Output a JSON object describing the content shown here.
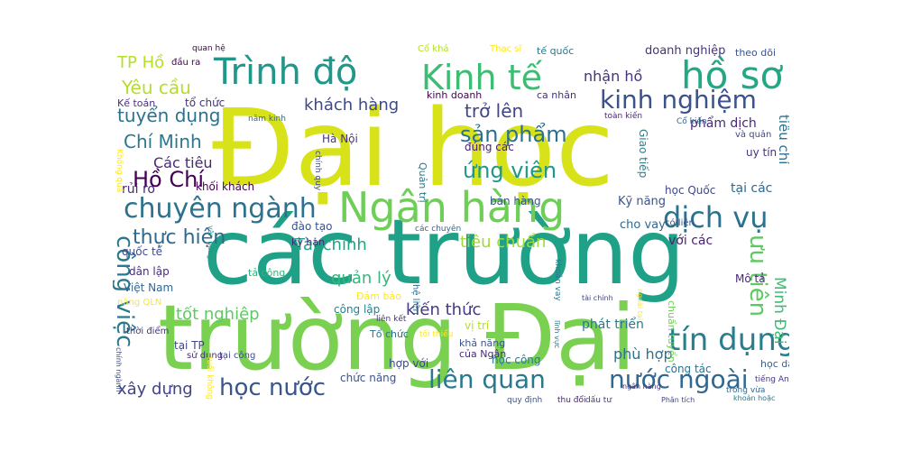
{
  "words": [
    {
      "text": "Đại học",
      "color": "#d8e219"
    },
    {
      "text": "các trường",
      "color": "#1fa187"
    },
    {
      "text": "trường Đại",
      "color": "#7ad151"
    },
    {
      "text": "Ngân hàng",
      "color": "#6ece58"
    },
    {
      "text": "Kinh tế",
      "color": "#3dbc74"
    },
    {
      "text": "Trình độ",
      "color": "#1f988b"
    },
    {
      "text": "hồ sơ",
      "color": "#22a884"
    },
    {
      "text": "chuyên ngành",
      "color": "#2c728e"
    },
    {
      "text": "dịch vụ",
      "color": "#2c728e"
    },
    {
      "text": "tín dụng",
      "color": "#277f8e"
    },
    {
      "text": "kinh nghiệm",
      "color": "#3b528b"
    },
    {
      "text": "liên quan",
      "color": "#2a788e"
    },
    {
      "text": "nước ngoài",
      "color": "#31688e"
    },
    {
      "text": "học nước",
      "color": "#39568c"
    },
    {
      "text": "công việc",
      "color": "#2a788e"
    },
    {
      "text": "ưu tiên",
      "color": "#5ec962"
    },
    {
      "text": "Hồ Chí",
      "color": "#440154"
    },
    {
      "text": "ứng viên",
      "color": "#1f988b"
    },
    {
      "text": "sản phẩm",
      "color": "#2d708e"
    },
    {
      "text": "thực hiện",
      "color": "#31688e"
    },
    {
      "text": "khách hàng",
      "color": "#3e4989"
    },
    {
      "text": "trở lên",
      "color": "#414487"
    },
    {
      "text": "Yêu cầu",
      "color": "#b5de2b"
    },
    {
      "text": "tuyển dụng",
      "color": "#2c728e"
    },
    {
      "text": "Chí Minh",
      "color": "#2a788e"
    },
    {
      "text": "tiêu chuẩn",
      "color": "#a0da39"
    },
    {
      "text": "Tài chính",
      "color": "#20a386"
    },
    {
      "text": "quản lý",
      "color": "#35b779"
    },
    {
      "text": "kiến thức",
      "color": "#443a83"
    },
    {
      "text": "tốt nghiệp",
      "color": "#5ec962"
    },
    {
      "text": "xây dựng",
      "color": "#414487"
    },
    {
      "text": "phù hợp",
      "color": "#2c728e"
    },
    {
      "text": "phát triển",
      "color": "#2a788e"
    },
    {
      "text": "TP Hồ",
      "color": "#b5de2b"
    },
    {
      "text": "Các tiêu",
      "color": "#482878"
    },
    {
      "text": "nhận hồ",
      "color": "#46327e"
    },
    {
      "text": "doanh nghiệp",
      "color": "#46327e"
    },
    {
      "text": "Minh Đại",
      "color": "#3dbc74"
    },
    {
      "text": "tiêu chí",
      "color": "#2c728e"
    },
    {
      "text": "phẩm dịch",
      "color": "#482878"
    },
    {
      "text": "Kỹ năng",
      "color": "#3b528b"
    },
    {
      "text": "cho vay",
      "color": "#31688e"
    },
    {
      "text": "Giao tiếp",
      "color": "#26828e"
    },
    {
      "text": "học Quốc",
      "color": "#3e4989"
    },
    {
      "text": "tại các",
      "color": "#31688e"
    },
    {
      "text": "uy tín",
      "color": "#46327e"
    },
    {
      "text": "với các",
      "color": "#481f70"
    },
    {
      "text": "bán hàng",
      "color": "#3b528b"
    },
    {
      "text": "chức năng",
      "color": "#3b528b"
    },
    {
      "text": "học công",
      "color": "#2a788e"
    },
    {
      "text": "công tác",
      "color": "#2c728e"
    },
    {
      "text": "Mô tả",
      "color": "#482878"
    },
    {
      "text": "Hà Nội",
      "color": "#46327e"
    },
    {
      "text": "khối khách",
      "color": "#440154"
    },
    {
      "text": "rủi ro",
      "color": "#482878"
    },
    {
      "text": "đào tạo",
      "color": "#3b528b"
    },
    {
      "text": "kỳ hạn",
      "color": "#482878"
    },
    {
      "text": "quốc tế",
      "color": "#3e4989"
    },
    {
      "text": "dân lập",
      "color": "#472d7b"
    },
    {
      "text": "Việt Nam",
      "color": "#31688e"
    },
    {
      "text": "công lập",
      "color": "#26828e"
    },
    {
      "text": "Tổ chức",
      "color": "#2c728e"
    },
    {
      "text": "Kế toán",
      "color": "#46327e"
    },
    {
      "text": "tổ chức",
      "color": "#46327e"
    },
    {
      "text": "Đảm bảo",
      "color": "#fde725"
    },
    {
      "text": "học dân",
      "color": "#355f8d"
    },
    {
      "text": "tại TP",
      "color": "#414487"
    },
    {
      "text": "khả năng",
      "color": "#3b528b"
    },
    {
      "text": "của Ngân",
      "color": "#472c7a"
    },
    {
      "text": "hợp với",
      "color": "#3e4989"
    },
    {
      "text": "vị trí",
      "color": "#b5de2b"
    },
    {
      "text": "Quản trị",
      "color": "#2a788e"
    },
    {
      "text": "tế quốc",
      "color": "#2a788e"
    },
    {
      "text": "theo dõi",
      "color": "#3b528b"
    },
    {
      "text": "năng QLN",
      "color": "#fde725"
    },
    {
      "text": "tả công",
      "color": "#2fb47c"
    },
    {
      "text": "có liên",
      "color": "#3b528b"
    },
    {
      "text": "chuẩn tuyển",
      "color": "#6ece58"
    },
    {
      "text": "kinh doanh",
      "color": "#440154"
    },
    {
      "text": "ca nhân",
      "color": "#46327e"
    },
    {
      "text": "đúng các",
      "color": "#481f70"
    },
    {
      "text": "hệ liên",
      "color": "#2c728e"
    },
    {
      "text": "Cổ khả",
      "color": "#b5de2b"
    },
    {
      "text": "và quản",
      "color": "#3e4989"
    },
    {
      "text": "tại công",
      "color": "#3e4989"
    },
    {
      "text": "thời điểm",
      "color": "#46327e"
    },
    {
      "text": "sử dụng",
      "color": "#472d7b"
    },
    {
      "text": "Thạc sĩ",
      "color": "#fde725"
    },
    {
      "text": "trong vừa",
      "color": "#31688e"
    },
    {
      "text": "đầu ra",
      "color": "#440154"
    },
    {
      "text": "quan hệ",
      "color": "#440154"
    },
    {
      "text": "liên kết",
      "color": "#46327e"
    },
    {
      "text": "tối thiểu",
      "color": "#fde725"
    },
    {
      "text": "tuổi không",
      "color": "#fde725"
    },
    {
      "text": "các chuyên",
      "color": "#31688e"
    },
    {
      "text": "Phân tích",
      "color": "#414487"
    },
    {
      "text": "dấu tư",
      "color": "#443a83"
    },
    {
      "text": "quy định",
      "color": "#3b528b"
    },
    {
      "text": "thu đổi",
      "color": "#481f70"
    },
    {
      "text": "tiếng Anh",
      "color": "#46327e"
    },
    {
      "text": "khoản vay",
      "color": "#2a788e"
    },
    {
      "text": "tài chính",
      "color": "#414487"
    },
    {
      "text": "ngoài tại",
      "color": "#fde725"
    },
    {
      "text": "Khống quá",
      "color": "#fde725"
    },
    {
      "text": "chính quy",
      "color": "#3e4989"
    },
    {
      "text": "Cổ kiến",
      "color": "#31688e"
    },
    {
      "text": "văn bằng",
      "color": "#1f988b"
    },
    {
      "text": "khoản hoặc",
      "color": "#2a788e"
    },
    {
      "text": "ngân hàng",
      "color": "#46327e"
    },
    {
      "text": "toàn kiến",
      "color": "#482878"
    },
    {
      "text": "chính ngành",
      "color": "#3b528b"
    },
    {
      "text": "lĩnh vực",
      "color": "#2a788e"
    },
    {
      "text": "năm kinh",
      "color": "#31688e"
    }
  ]
}
